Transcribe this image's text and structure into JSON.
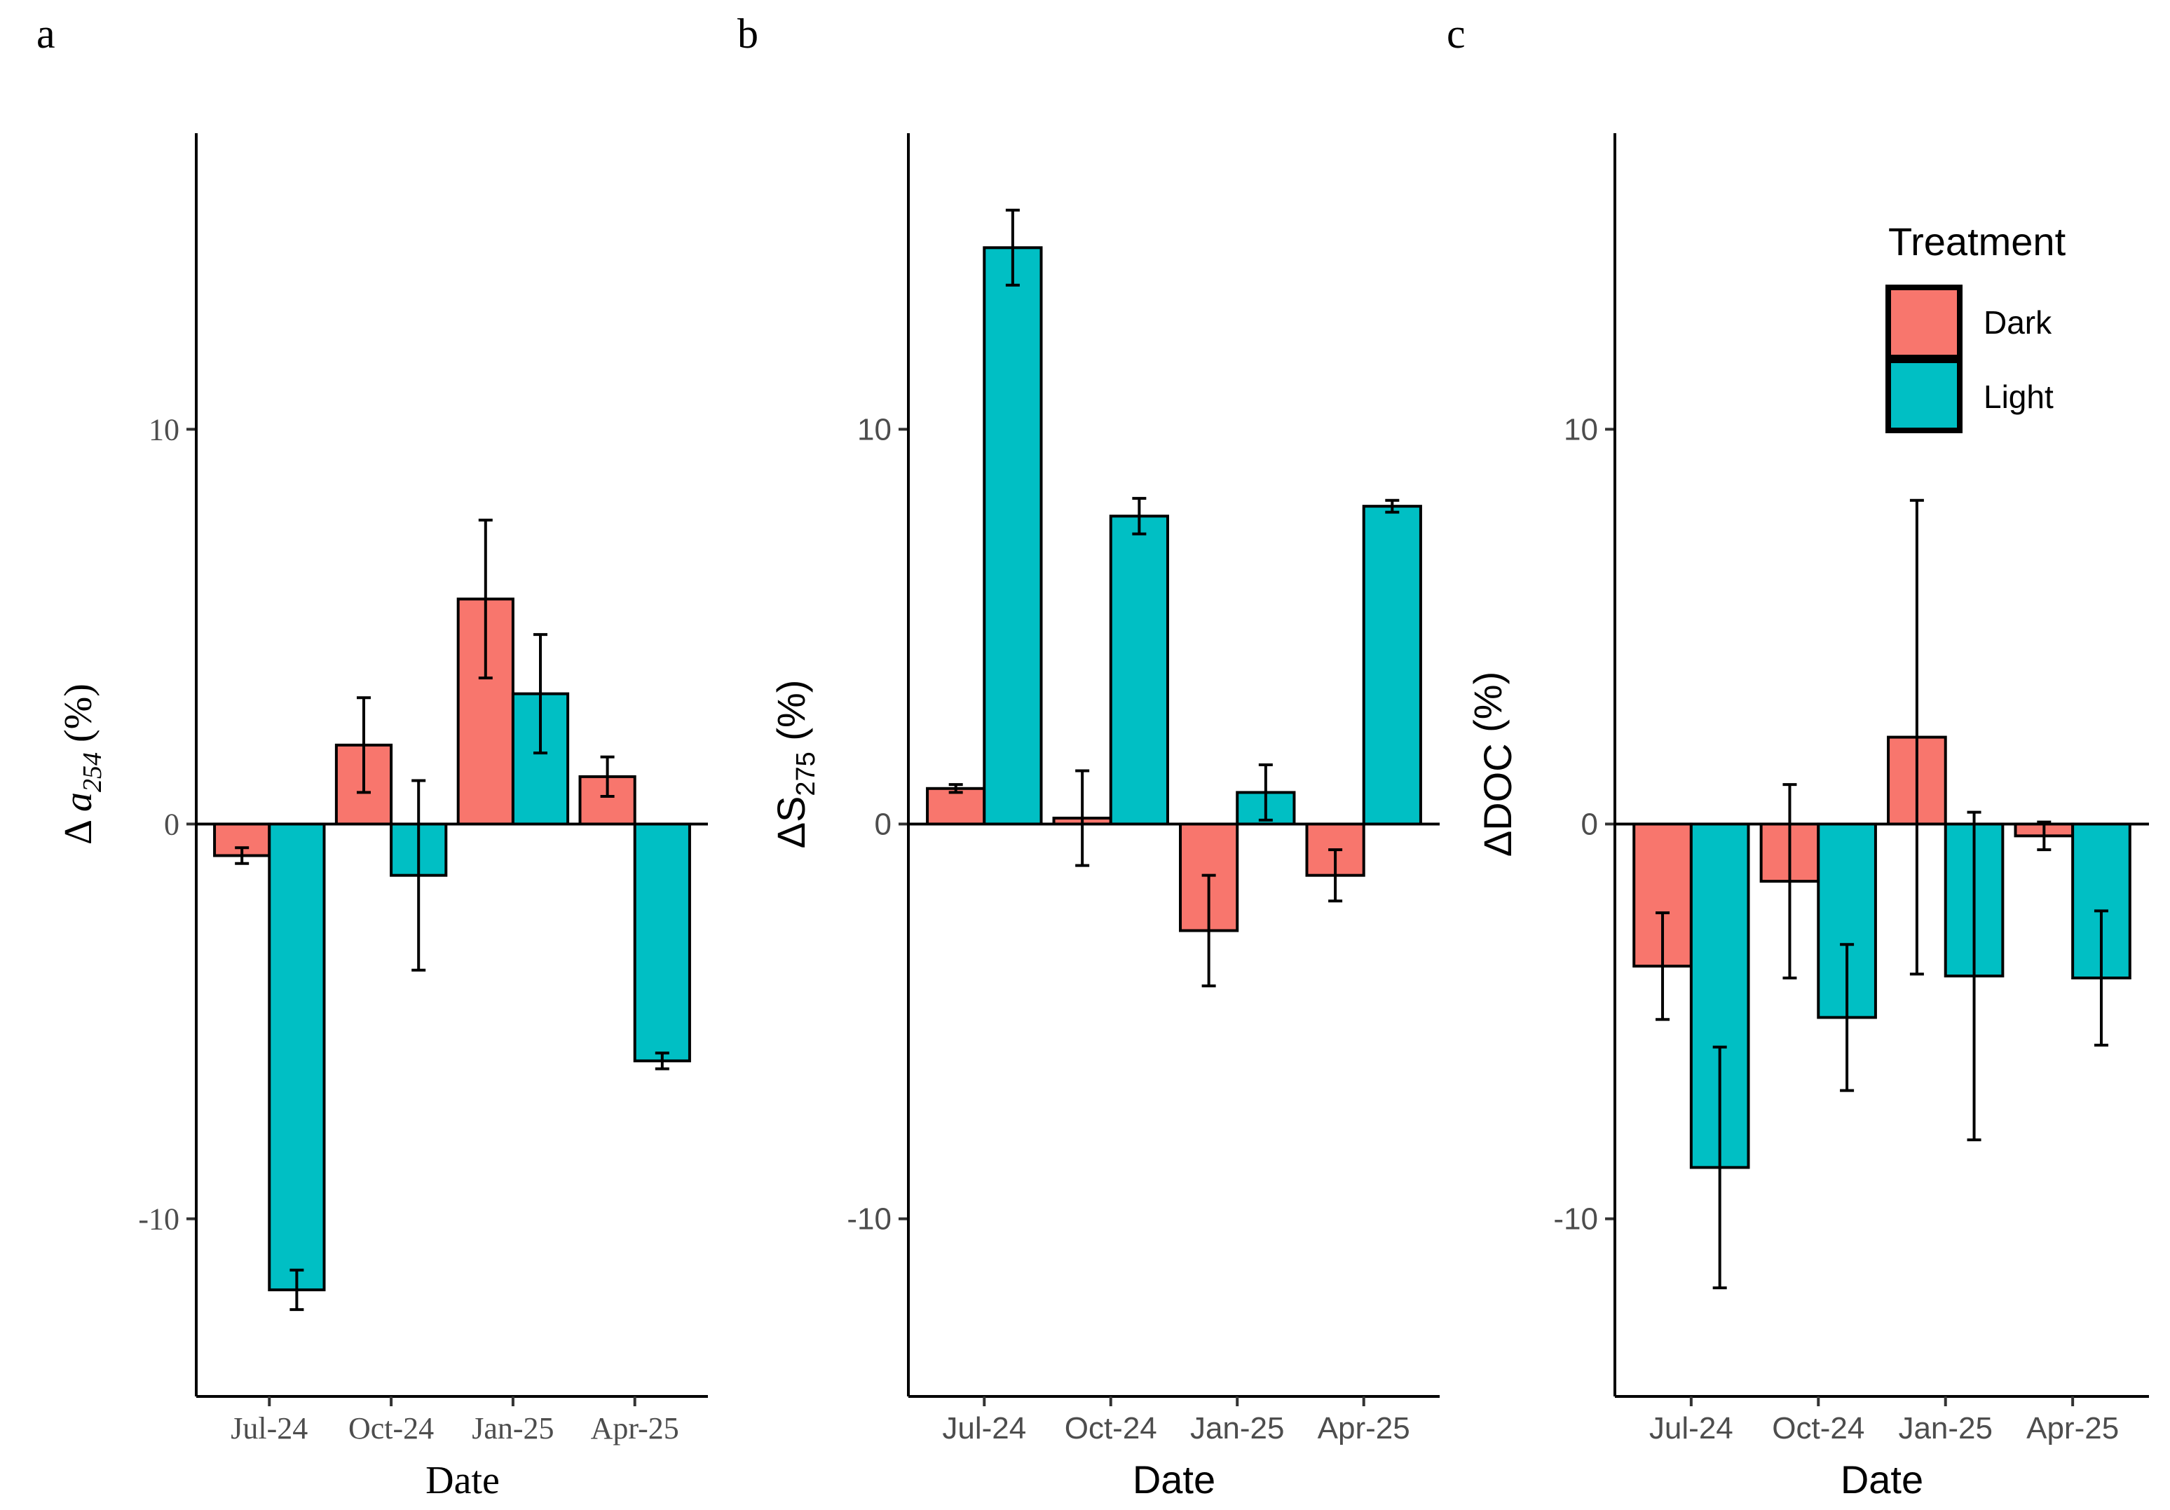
{
  "colors": {
    "Dark": "#F8766D",
    "Light": "#00BFC4"
  },
  "legend": {
    "title": "Treatment",
    "items": [
      "Dark",
      "Light"
    ]
  },
  "chart_data": [
    {
      "type": "bar",
      "panel_label": "a",
      "title": "",
      "xlabel": "Date",
      "ylabel_symbol": "Δ ",
      "ylabel_var": "a",
      "ylabel_sub": "254",
      "ylabel_unit": " (%)",
      "categories": [
        "Jul-24",
        "Oct-24",
        "Jan-25",
        "Apr-25"
      ],
      "ylim": [
        -14.5,
        17.5
      ],
      "yticks": [
        -10,
        0,
        10
      ],
      "series": [
        {
          "name": "Dark",
          "values": [
            -0.8,
            2.0,
            5.7,
            1.2
          ],
          "errors": [
            0.2,
            1.2,
            2.0,
            0.5
          ]
        },
        {
          "name": "Light",
          "values": [
            -11.8,
            -1.3,
            3.3,
            -6.0
          ],
          "errors": [
            0.5,
            2.4,
            1.5,
            0.2
          ]
        }
      ],
      "font": "serif"
    },
    {
      "type": "bar",
      "panel_label": "b",
      "title": "",
      "xlabel": "Date",
      "ylabel_symbol": "Δ",
      "ylabel_var": "S",
      "ylabel_sub": "275",
      "ylabel_unit": " (%)",
      "categories": [
        "Jul-24",
        "Oct-24",
        "Jan-25",
        "Apr-25"
      ],
      "ylim": [
        -14.5,
        17.5
      ],
      "yticks": [
        -10,
        0,
        10
      ],
      "series": [
        {
          "name": "Dark",
          "values": [
            0.9,
            0.15,
            -2.7,
            -1.3
          ],
          "errors": [
            0.1,
            1.2,
            1.4,
            0.65
          ]
        },
        {
          "name": "Light",
          "values": [
            14.6,
            7.8,
            0.8,
            8.05
          ],
          "errors": [
            0.95,
            0.45,
            0.7,
            0.15
          ]
        }
      ],
      "font": "sans"
    },
    {
      "type": "bar",
      "panel_label": "c",
      "title": "",
      "xlabel": "Date",
      "ylabel_symbol": "Δ",
      "ylabel_var": "DOC",
      "ylabel_sub": "",
      "ylabel_unit": " (%)",
      "categories": [
        "Jul-24",
        "Oct-24",
        "Jan-25",
        "Apr-25"
      ],
      "ylim": [
        -14.5,
        17.5
      ],
      "yticks": [
        -10,
        0,
        10
      ],
      "series": [
        {
          "name": "Dark",
          "values": [
            -3.6,
            -1.45,
            2.2,
            -0.3
          ],
          "errors": [
            1.35,
            2.45,
            6.0,
            0.35
          ]
        },
        {
          "name": "Light",
          "values": [
            -8.7,
            -4.9,
            -3.85,
            -3.9
          ],
          "errors": [
            3.05,
            1.85,
            4.15,
            1.7
          ]
        }
      ],
      "font": "sans"
    }
  ]
}
